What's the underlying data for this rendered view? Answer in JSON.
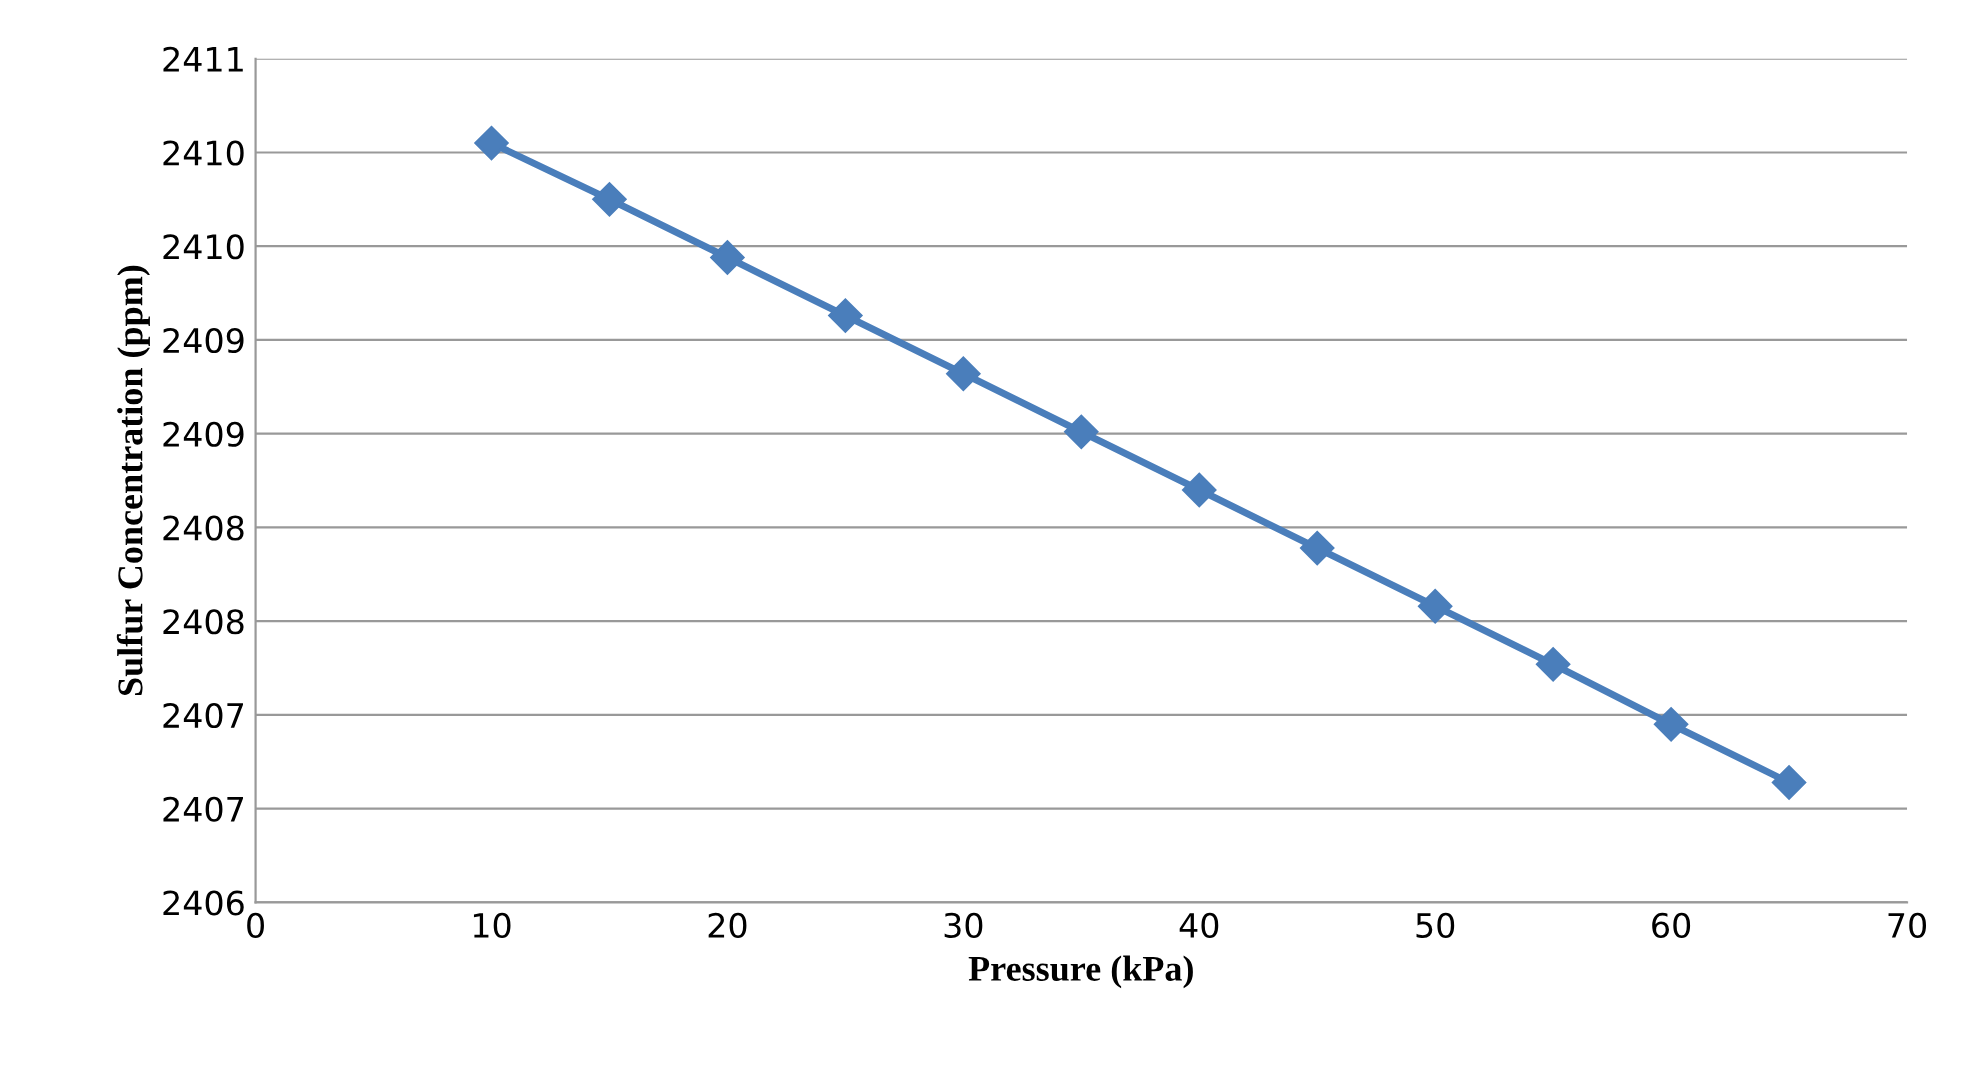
{
  "chart_data": {
    "type": "line",
    "xlabel": "Pressure (kPa)",
    "ylabel": "Sulfur Concentration (ppm)",
    "x": [
      10,
      15,
      20,
      25,
      30,
      35,
      40,
      45,
      50,
      55,
      60,
      65
    ],
    "series": [
      {
        "color": "#4a7ebb",
        "values": [
          2410.05,
          2409.75,
          2409.44,
          2409.13,
          2408.82,
          2408.51,
          2408.2,
          2407.89,
          2407.58,
          2407.27,
          2406.95,
          2406.64
        ]
      }
    ],
    "xlim": [
      0,
      70
    ],
    "xticks": [
      0,
      10,
      20,
      30,
      40,
      50,
      60,
      70
    ],
    "ylim": [
      2406,
      2410.5
    ],
    "yticks": [
      2406,
      {
        "value": 2406.5,
        "label": "2407"
      },
      2407,
      {
        "value": 2407.5,
        "label": "2408"
      },
      2408,
      {
        "value": 2408.5,
        "label": "2409"
      },
      2409,
      {
        "value": 2409.5,
        "label": "2410"
      },
      2410,
      {
        "value": 2410.5,
        "label": "2411"
      }
    ],
    "grid": "y",
    "marker": "diamond",
    "line_style": "solid"
  }
}
